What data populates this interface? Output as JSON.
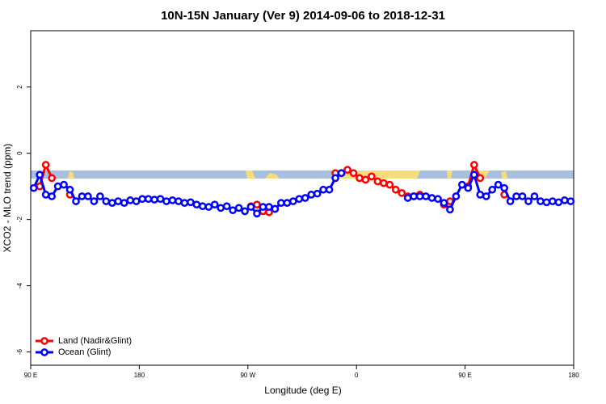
{
  "chart_data": {
    "type": "line",
    "title": "10N-15N January (Ver 9)   2014-09-06 to 2018-12-31",
    "xlabel": "Longitude (deg E)",
    "ylabel": "XCO2 - MLO trend (ppm)",
    "xlim": [
      90,
      540
    ],
    "ylim": [
      -6.4,
      3.7
    ],
    "xticks": [
      {
        "value": 90,
        "label": "90 E"
      },
      180,
      {
        "value": 270,
        "label": "90 W"
      },
      {
        "value": 360,
        "label": "0"
      },
      {
        "value": 450,
        "label": "90 E"
      },
      {
        "value": 540,
        "label": "180"
      }
    ],
    "yticks": [
      2,
      0,
      -2,
      -4,
      -6
    ],
    "legend": "bottom-left",
    "x": [
      92.5,
      97.5,
      102.5,
      107.5,
      112.5,
      117.5,
      122.5,
      127.5,
      132.5,
      137.5,
      142.5,
      147.5,
      152.5,
      157.5,
      162.5,
      167.5,
      172.5,
      177.5,
      182.5,
      187.5,
      192.5,
      197.5,
      202.5,
      207.5,
      212.5,
      217.5,
      222.5,
      227.5,
      232.5,
      237.5,
      242.5,
      247.5,
      252.5,
      257.5,
      262.5,
      267.5,
      272.5,
      277.5,
      282.5,
      287.5,
      292.5,
      297.5,
      302.5,
      307.5,
      312.5,
      317.5,
      322.5,
      327.5,
      332.5,
      337.5,
      342.5,
      347.5,
      352.5,
      357.5,
      362.5,
      367.5,
      372.5,
      377.5,
      382.5,
      387.5,
      392.5,
      397.5,
      402.5,
      407.5,
      412.5,
      417.5,
      422.5,
      427.5,
      432.5,
      437.5,
      442.5,
      447.5,
      452.5,
      457.5,
      462.5,
      467.5,
      472.5,
      477.5,
      482.5,
      487.5,
      492.5,
      497.5,
      502.5,
      507.5,
      512.5,
      517.5,
      522.5,
      527.5,
      532.5,
      537.5
    ],
    "series": [
      {
        "name": "Land (Nadir&Glint)",
        "color": "#ff0000",
        "values": [
          null,
          -1.0,
          -0.35,
          -0.75,
          null,
          null,
          -1.25,
          null,
          null,
          null,
          null,
          null,
          null,
          null,
          null,
          null,
          null,
          null,
          null,
          null,
          null,
          null,
          null,
          null,
          null,
          null,
          null,
          null,
          null,
          null,
          null,
          null,
          null,
          null,
          null,
          null,
          -1.6,
          -1.55,
          -1.75,
          -1.78,
          -1.68,
          null,
          null,
          null,
          null,
          null,
          null,
          null,
          null,
          null,
          -0.6,
          -0.6,
          -0.5,
          -0.6,
          -0.75,
          -0.8,
          -0.7,
          -0.85,
          -0.9,
          -0.95,
          -1.1,
          -1.2,
          -1.3,
          -1.3,
          -1.25,
          null,
          null,
          null,
          -1.55,
          -1.45,
          null,
          null,
          -1.0,
          -0.35,
          -0.75,
          null,
          null,
          null,
          -1.25,
          null,
          null,
          null,
          null,
          null,
          null,
          null,
          null,
          null,
          null,
          null
        ]
      },
      {
        "name": "Ocean (Glint)",
        "color": "#0000ff",
        "values": [
          -1.05,
          -0.65,
          -1.25,
          -1.3,
          -1.0,
          -0.95,
          -1.1,
          -1.45,
          -1.3,
          -1.3,
          -1.45,
          -1.3,
          -1.45,
          -1.5,
          -1.45,
          -1.5,
          -1.42,
          -1.45,
          -1.38,
          -1.38,
          -1.4,
          -1.38,
          -1.45,
          -1.42,
          -1.45,
          -1.5,
          -1.48,
          -1.55,
          -1.6,
          -1.62,
          -1.55,
          -1.65,
          -1.6,
          -1.72,
          -1.65,
          -1.75,
          -1.62,
          -1.82,
          -1.62,
          -1.62,
          -1.68,
          -1.5,
          -1.5,
          -1.45,
          -1.38,
          -1.35,
          -1.25,
          -1.22,
          -1.1,
          -1.1,
          -0.75,
          -0.6,
          null,
          null,
          null,
          null,
          null,
          null,
          null,
          null,
          null,
          null,
          -1.35,
          -1.3,
          -1.3,
          -1.3,
          -1.35,
          -1.38,
          -1.5,
          -1.7,
          -1.3,
          -0.95,
          -1.05,
          -0.65,
          -1.25,
          -1.3,
          -1.1,
          -0.95,
          -1.05,
          -1.45,
          -1.3,
          -1.3,
          -1.45,
          -1.3,
          -1.45,
          -1.48,
          -1.45,
          -1.48,
          -1.42,
          -1.45
        ]
      }
    ]
  }
}
